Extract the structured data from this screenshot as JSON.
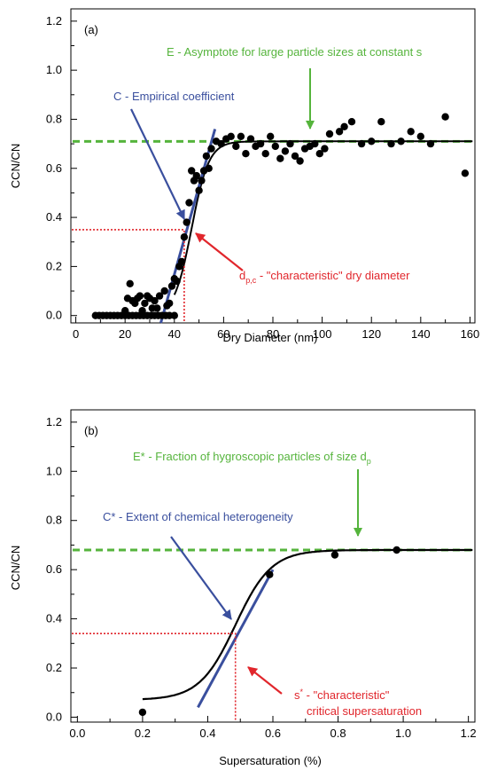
{
  "colors": {
    "green": "#55b43c",
    "blue": "#3a4f9e",
    "red": "#e1262c",
    "black": "#000000"
  },
  "chart_data": [
    {
      "type": "scatter",
      "panel_label": "(a)",
      "xlabel": "Dry Diameter (nm)",
      "ylabel": "CCN/CN",
      "xlim": [
        -2,
        162
      ],
      "ylim": [
        -0.03,
        1.25
      ],
      "xticks": [
        0,
        20,
        40,
        60,
        80,
        100,
        120,
        140,
        160
      ],
      "xtick_labels": [
        "0",
        "20",
        "40",
        "60",
        "80",
        "100",
        "120",
        "140",
        "160"
      ],
      "yticks": [
        0.0,
        0.2,
        0.4,
        0.6,
        0.8,
        1.0,
        1.2
      ],
      "ytick_labels": [
        "0.0",
        "0.2",
        "0.4",
        "0.6",
        "0.8",
        "1.0",
        "1.2"
      ],
      "grid": false,
      "points": [
        [
          8,
          0.0
        ],
        [
          9.5,
          0.0
        ],
        [
          11,
          0.0
        ],
        [
          12.5,
          0.0
        ],
        [
          14,
          0.0
        ],
        [
          15.5,
          0.0
        ],
        [
          17,
          0.0
        ],
        [
          18.5,
          0.0
        ],
        [
          20,
          0.0
        ],
        [
          21.5,
          0.0
        ],
        [
          23,
          0.0
        ],
        [
          24.5,
          0.0
        ],
        [
          26,
          0.0
        ],
        [
          27.5,
          0.0
        ],
        [
          29,
          0.0
        ],
        [
          30.5,
          0.0
        ],
        [
          32,
          0.0
        ],
        [
          33.5,
          0.0
        ],
        [
          35,
          0.0
        ],
        [
          36.5,
          0.0
        ],
        [
          38,
          0.0
        ],
        [
          40,
          0.0
        ],
        [
          20,
          0.02
        ],
        [
          21,
          0.07
        ],
        [
          22,
          0.13
        ],
        [
          23,
          0.06
        ],
        [
          24,
          0.05
        ],
        [
          25,
          0.07
        ],
        [
          26,
          0.08
        ],
        [
          27,
          0.02
        ],
        [
          28,
          0.05
        ],
        [
          29,
          0.08
        ],
        [
          30,
          0.07
        ],
        [
          31,
          0.03
        ],
        [
          32,
          0.06
        ],
        [
          33,
          0.03
        ],
        [
          34,
          0.08
        ],
        [
          36,
          0.1
        ],
        [
          37,
          0.04
        ],
        [
          38,
          0.05
        ],
        [
          39,
          0.12
        ],
        [
          40,
          0.15
        ],
        [
          41,
          0.14
        ],
        [
          42,
          0.2
        ],
        [
          43,
          0.22
        ],
        [
          44,
          0.32
        ],
        [
          45,
          0.38
        ],
        [
          46,
          0.46
        ],
        [
          47,
          0.59
        ],
        [
          48,
          0.55
        ],
        [
          49,
          0.57
        ],
        [
          50,
          0.51
        ],
        [
          51,
          0.55
        ],
        [
          52,
          0.59
        ],
        [
          53,
          0.65
        ],
        [
          54,
          0.6
        ],
        [
          55,
          0.68
        ],
        [
          57,
          0.71
        ],
        [
          59,
          0.7
        ],
        [
          61,
          0.72
        ],
        [
          63,
          0.73
        ],
        [
          65,
          0.69
        ],
        [
          67,
          0.73
        ],
        [
          69,
          0.66
        ],
        [
          71,
          0.72
        ],
        [
          73,
          0.69
        ],
        [
          75,
          0.7
        ],
        [
          77,
          0.66
        ],
        [
          79,
          0.73
        ],
        [
          81,
          0.69
        ],
        [
          83,
          0.64
        ],
        [
          85,
          0.67
        ],
        [
          87,
          0.7
        ],
        [
          89,
          0.65
        ],
        [
          91,
          0.63
        ],
        [
          93,
          0.68
        ],
        [
          95,
          0.69
        ],
        [
          97,
          0.7
        ],
        [
          99,
          0.66
        ],
        [
          101,
          0.68
        ],
        [
          103,
          0.74
        ],
        [
          107,
          0.75
        ],
        [
          109,
          0.77
        ],
        [
          112,
          0.79
        ],
        [
          116,
          0.7
        ],
        [
          120,
          0.71
        ],
        [
          124,
          0.79
        ],
        [
          128,
          0.7
        ],
        [
          132,
          0.71
        ],
        [
          136,
          0.75
        ],
        [
          140,
          0.73
        ],
        [
          144,
          0.7
        ],
        [
          150,
          0.81
        ],
        [
          158,
          0.58
        ]
      ],
      "fit_curve": {
        "type": "sigmoid",
        "asymptote": 0.71,
        "midpoint": 47,
        "width": 3.5
      },
      "asymptote_line": {
        "y": 0.71
      },
      "slope_line": {
        "x1": 34.5,
        "y1": -0.03,
        "x2": 56.5,
        "y2": 0.76
      },
      "characteristic_point": {
        "x": 44,
        "y": 0.35
      },
      "annotations": {
        "E": "E - Asymptote for large particle sizes at constant s",
        "C": "C - Empirical coefficient",
        "D_prefix": "d",
        "D_subscript": "p,c",
        "D_text": " - \"characteristic\" dry diameter"
      }
    },
    {
      "type": "scatter",
      "panel_label": "(b)",
      "xlabel": "Supersaturation (%)",
      "ylabel": "CCN/CN",
      "xlim": [
        -0.02,
        1.22
      ],
      "ylim": [
        -0.02,
        1.25
      ],
      "xticks": [
        0.0,
        0.2,
        0.4,
        0.6,
        0.8,
        1.0,
        1.2
      ],
      "xtick_labels": [
        "0.0",
        "0.2",
        "0.4",
        "0.6",
        "0.8",
        "1.0",
        "1.2"
      ],
      "yticks": [
        0.0,
        0.2,
        0.4,
        0.6,
        0.8,
        1.0,
        1.2
      ],
      "ytick_labels": [
        "0.0",
        "0.2",
        "0.4",
        "0.6",
        "0.8",
        "1.0",
        "1.2"
      ],
      "grid": false,
      "points": [
        [
          0.2,
          0.02
        ],
        [
          0.59,
          0.58
        ],
        [
          0.79,
          0.66
        ],
        [
          0.98,
          0.68
        ]
      ],
      "fit_curve": {
        "type": "sigmoid",
        "asymptote": 0.68,
        "baseline": 0.07,
        "midpoint": 0.485,
        "width": 0.055,
        "x_start": 0.2
      },
      "asymptote_line": {
        "y": 0.68
      },
      "slope_line": {
        "x1": 0.37,
        "y1": 0.04,
        "x2": 0.6,
        "y2": 0.6
      },
      "characteristic_point": {
        "x": 0.485,
        "y": 0.34
      },
      "annotations": {
        "E": "E* - Fraction of hygroscopic particles of size d",
        "E_subscript": "p",
        "C": "C* - Extent of chemical heterogeneity",
        "S_line1": "s",
        "S_sup": "*",
        "S_line1_rest": " - \"characteristic\"",
        "S_line2": "critical supersaturation"
      }
    }
  ]
}
